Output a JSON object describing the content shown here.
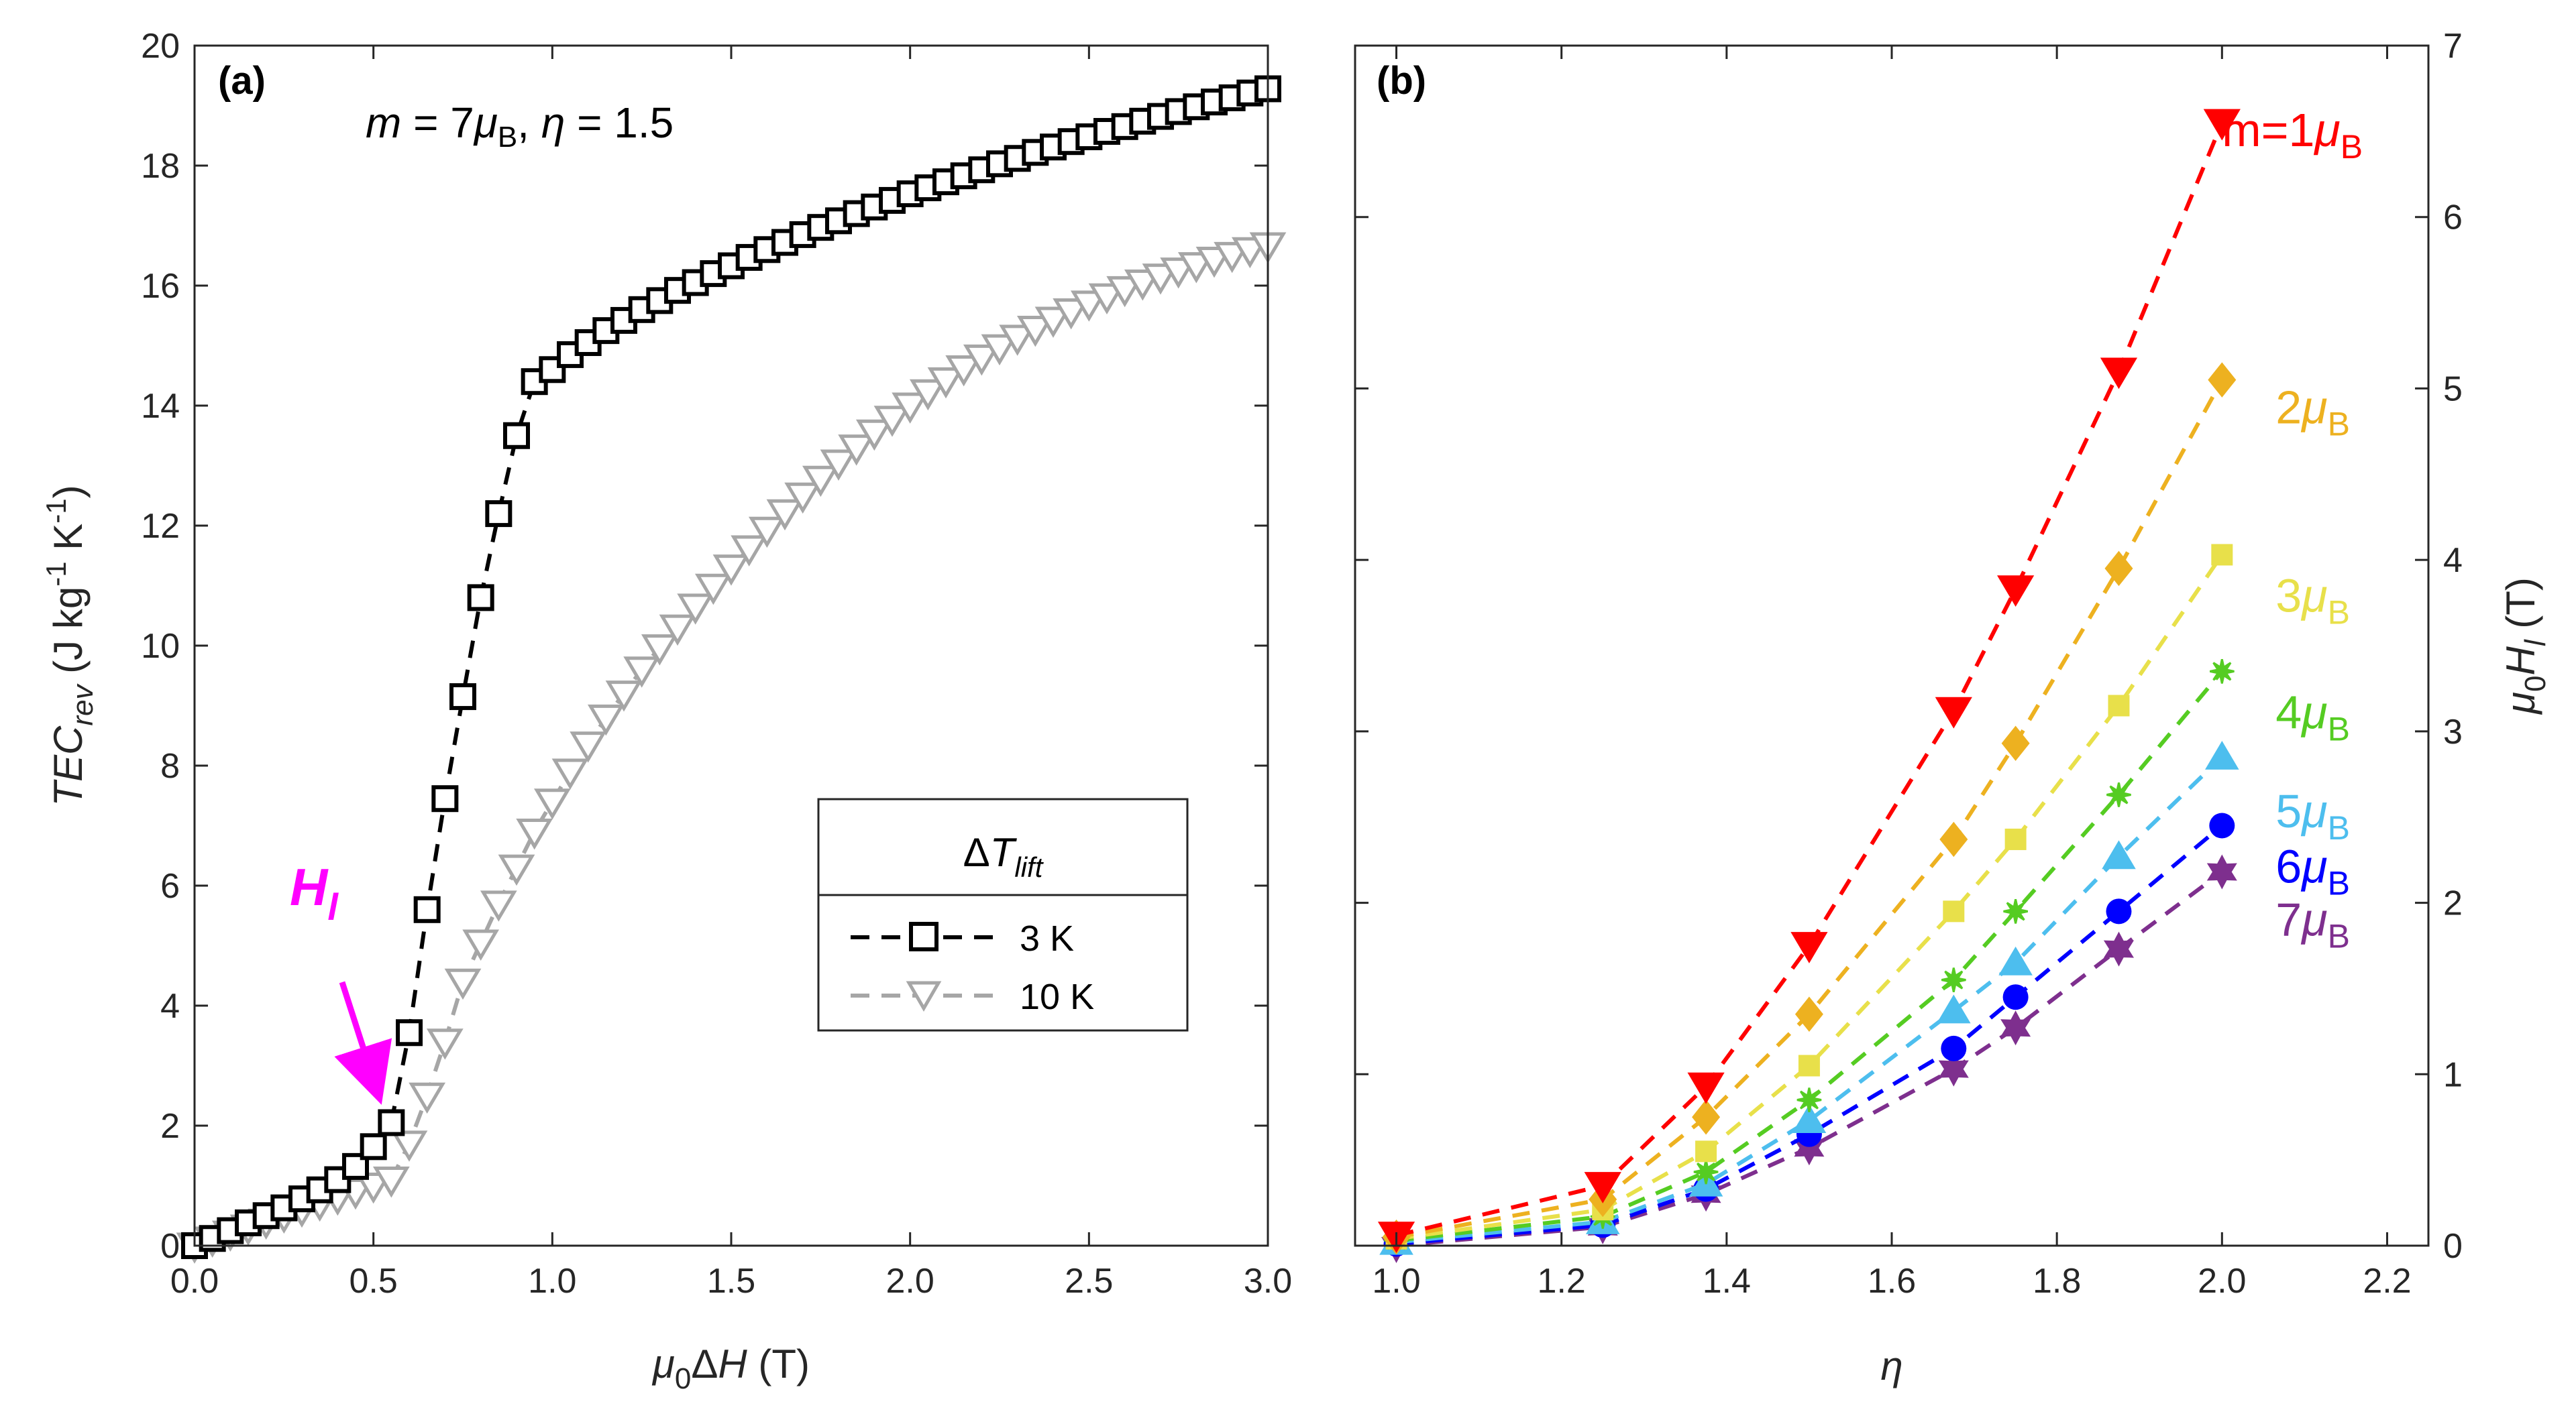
{
  "chart_data": [
    {
      "type": "scatter",
      "panel_label": "(a)",
      "annotation": {
        "m_sym": "m",
        "m_eq": " = 7",
        "mu": "μ",
        "sub_B": "B",
        "comma": ", ",
        "eta_sym": "η",
        "eta_eq": " = 1.5"
      },
      "hl_annotation": {
        "main": "H",
        "sub": "l"
      },
      "ylabel": {
        "main": "TEC",
        "sub": "rev",
        "unit_1": " (J kg",
        "exp_1": "-1",
        "unit_2": " K",
        "exp_2": "-1",
        "unit_3": ")"
      },
      "xlabel": {
        "mu": "μ",
        "sub0": "0",
        "delta": "Δ",
        "H": "H",
        "unit": " (T)"
      },
      "xlim": [
        0,
        3
      ],
      "ylim": [
        0,
        20
      ],
      "xticks": [
        "0.0",
        "0.5",
        "1.0",
        "1.5",
        "2.0",
        "2.5",
        "3.0"
      ],
      "yticks": [
        "0",
        "2",
        "4",
        "6",
        "8",
        "10",
        "12",
        "14",
        "16",
        "18",
        "20"
      ],
      "legend": {
        "position": "center-right",
        "title_delta": "Δ",
        "title_T": "T",
        "title_sub": "lift",
        "entries": [
          "3 K",
          "10 K"
        ]
      },
      "series": [
        {
          "name": "3 K",
          "color": "#000000",
          "marker": "square",
          "x": [
            0.0,
            0.05,
            0.1,
            0.15,
            0.2,
            0.25,
            0.3,
            0.35,
            0.4,
            0.45,
            0.5,
            0.55,
            0.6,
            0.65,
            0.7,
            0.75,
            0.8,
            0.85,
            0.9,
            0.95,
            1.0,
            1.05,
            1.1,
            1.15,
            1.2,
            1.25,
            1.3,
            1.35,
            1.4,
            1.45,
            1.5,
            1.55,
            1.6,
            1.65,
            1.7,
            1.75,
            1.8,
            1.85,
            1.9,
            1.95,
            2.0,
            2.05,
            2.1,
            2.15,
            2.2,
            2.25,
            2.3,
            2.35,
            2.4,
            2.45,
            2.5,
            2.55,
            2.6,
            2.65,
            2.7,
            2.75,
            2.8,
            2.85,
            2.9,
            2.95,
            3.0
          ],
          "y": [
            0.0,
            0.12,
            0.25,
            0.38,
            0.5,
            0.63,
            0.78,
            0.93,
            1.1,
            1.32,
            1.65,
            2.05,
            3.55,
            5.6,
            7.45,
            9.15,
            10.8,
            12.2,
            13.5,
            14.4,
            14.6,
            14.85,
            15.05,
            15.25,
            15.42,
            15.6,
            15.75,
            15.92,
            16.05,
            16.2,
            16.33,
            16.47,
            16.6,
            16.72,
            16.85,
            16.97,
            17.08,
            17.2,
            17.31,
            17.42,
            17.53,
            17.63,
            17.73,
            17.83,
            17.93,
            18.03,
            18.12,
            18.22,
            18.31,
            18.4,
            18.48,
            18.57,
            18.65,
            18.74,
            18.82,
            18.9,
            18.98,
            19.06,
            19.13,
            19.21,
            19.28
          ]
        },
        {
          "name": "10 K",
          "color": "#A6A6A6",
          "marker": "triangle-down",
          "x": [
            0.0,
            0.05,
            0.1,
            0.15,
            0.2,
            0.25,
            0.3,
            0.35,
            0.4,
            0.45,
            0.5,
            0.55,
            0.6,
            0.65,
            0.7,
            0.75,
            0.8,
            0.85,
            0.9,
            0.95,
            1.0,
            1.05,
            1.1,
            1.15,
            1.2,
            1.25,
            1.3,
            1.35,
            1.4,
            1.45,
            1.5,
            1.55,
            1.6,
            1.65,
            1.7,
            1.75,
            1.8,
            1.85,
            1.9,
            1.95,
            2.0,
            2.05,
            2.1,
            2.15,
            2.2,
            2.25,
            2.3,
            2.35,
            2.4,
            2.45,
            2.5,
            2.55,
            2.6,
            2.65,
            2.7,
            2.75,
            2.8,
            2.85,
            2.9,
            2.95,
            3.0
          ],
          "y": [
            0.0,
            0.1,
            0.2,
            0.3,
            0.4,
            0.5,
            0.6,
            0.7,
            0.8,
            0.9,
            1.0,
            1.1,
            1.7,
            2.5,
            3.4,
            4.4,
            5.05,
            5.7,
            6.3,
            6.9,
            7.4,
            7.9,
            8.35,
            8.8,
            9.2,
            9.6,
            9.97,
            10.3,
            10.65,
            10.98,
            11.3,
            11.62,
            11.93,
            12.22,
            12.5,
            12.78,
            13.05,
            13.3,
            13.55,
            13.78,
            14.0,
            14.22,
            14.42,
            14.62,
            14.8,
            14.97,
            15.13,
            15.28,
            15.43,
            15.57,
            15.7,
            15.82,
            15.94,
            16.05,
            16.15,
            16.25,
            16.34,
            16.43,
            16.51,
            16.59,
            16.67
          ]
        }
      ]
    },
    {
      "type": "line",
      "panel_label": "(b)",
      "xlabel": "η",
      "ylabel": {
        "mu": "μ",
        "sub0": "0",
        "H": "H",
        "subl": "l",
        "unit": " (T)"
      },
      "xlim": [
        0.95,
        2.25
      ],
      "ylim": [
        0,
        7
      ],
      "xticks": [
        "1.0",
        "1.2",
        "1.4",
        "1.6",
        "1.8",
        "2.0",
        "2.2"
      ],
      "yticks": [
        "0",
        "1",
        "2",
        "3",
        "4",
        "5",
        "6",
        "7"
      ],
      "x": [
        1.0,
        1.25,
        1.375,
        1.5,
        1.675,
        1.75,
        1.875,
        2.0
      ],
      "series": [
        {
          "name": "m=1μB",
          "label_prefix": "m=1",
          "color": "#FF0000",
          "marker": "triangle-down",
          "values": [
            0.06,
            0.35,
            0.93,
            1.75,
            3.12,
            3.83,
            5.1,
            6.55
          ]
        },
        {
          "name": "2μB",
          "label_prefix": "2",
          "color": "#EDB120",
          "marker": "diamond",
          "values": [
            0.05,
            0.27,
            0.75,
            1.35,
            2.37,
            2.93,
            3.95,
            5.05
          ]
        },
        {
          "name": "3μB",
          "label_prefix": "3",
          "color": "#E8E04A",
          "marker": "square",
          "values": [
            0.04,
            0.21,
            0.55,
            1.05,
            1.95,
            2.37,
            3.15,
            4.03
          ]
        },
        {
          "name": "4μB",
          "label_prefix": "4",
          "color": "#55CC22",
          "marker": "asterisk",
          "values": [
            0.03,
            0.17,
            0.43,
            0.85,
            1.55,
            1.95,
            2.63,
            3.35
          ]
        },
        {
          "name": "5μB",
          "label_prefix": "5",
          "color": "#4DBEEE",
          "marker": "triangle-up",
          "values": [
            0.02,
            0.14,
            0.36,
            0.73,
            1.37,
            1.65,
            2.27,
            2.85
          ]
        },
        {
          "name": "6μB",
          "label_prefix": "6",
          "color": "#0000FF",
          "marker": "circle",
          "values": [
            0.01,
            0.12,
            0.33,
            0.65,
            1.15,
            1.45,
            1.95,
            2.45
          ]
        },
        {
          "name": "7μB",
          "label_prefix": "7",
          "color": "#7E2F8E",
          "marker": "hexagram",
          "values": [
            0.0,
            0.11,
            0.3,
            0.57,
            1.03,
            1.27,
            1.73,
            2.18
          ]
        }
      ],
      "label_mu": "μ",
      "label_sub": "B"
    }
  ]
}
